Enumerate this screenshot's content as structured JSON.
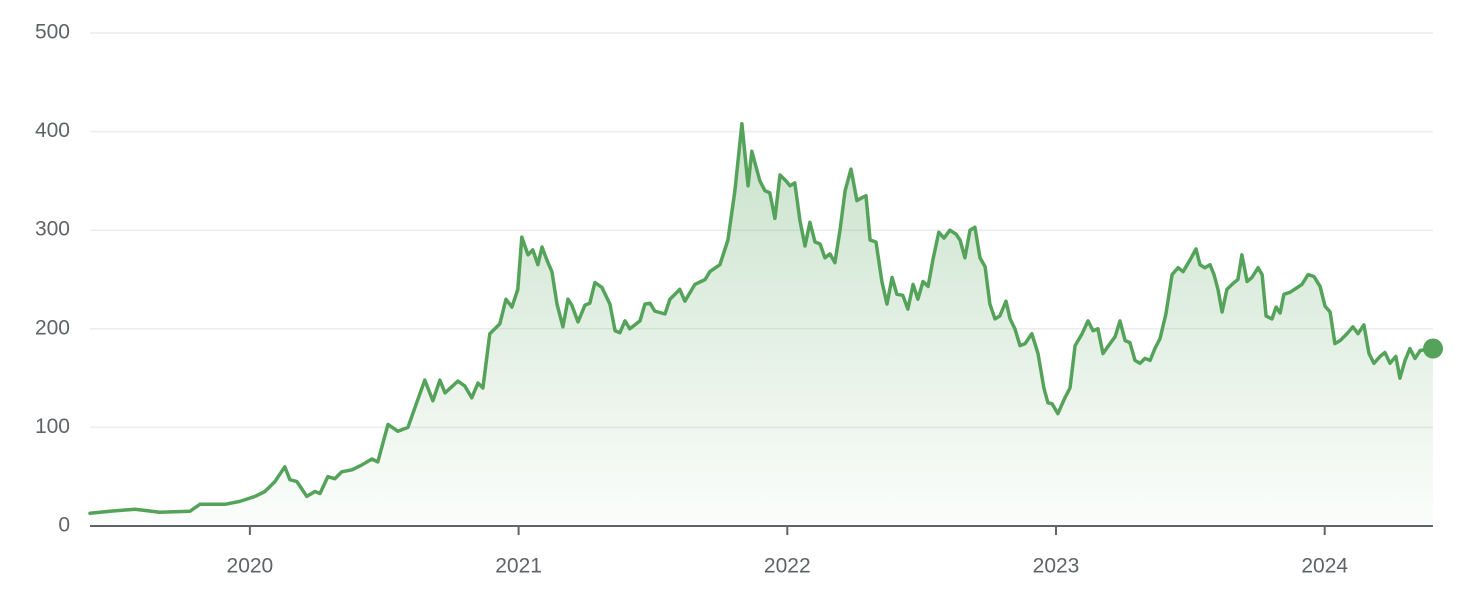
{
  "chart_data": {
    "type": "line",
    "color": "#55a35a",
    "grid": true,
    "end_marker": true,
    "xlim": [
      2019.405,
      2024.403
    ],
    "xticks": [
      2020,
      2021,
      2022,
      2023,
      2024
    ],
    "ylim": [
      0,
      500
    ],
    "yticks": [
      0,
      100,
      200,
      300,
      400,
      500
    ],
    "x": [
      2019.405,
      2019.479,
      2019.572,
      2019.665,
      2019.777,
      2019.814,
      2019.907,
      2019.963,
      2020.019,
      2020.056,
      2020.093,
      2020.13,
      2020.149,
      2020.175,
      2020.212,
      2020.242,
      2020.261,
      2020.29,
      2020.316,
      2020.342,
      2020.38,
      2020.417,
      2020.454,
      2020.476,
      2020.514,
      2020.551,
      2020.588,
      2020.614,
      2020.651,
      2020.681,
      2020.707,
      2020.726,
      2020.774,
      2020.8,
      2020.826,
      2020.849,
      2020.867,
      2020.893,
      2020.93,
      2020.953,
      2020.975,
      2020.997,
      2021.012,
      2021.035,
      2021.053,
      2021.072,
      2021.087,
      2021.105,
      2021.124,
      2021.143,
      2021.165,
      2021.184,
      2021.198,
      2021.221,
      2021.247,
      2021.265,
      2021.284,
      2021.31,
      2021.34,
      2021.359,
      2021.377,
      2021.396,
      2021.414,
      2021.452,
      2021.47,
      2021.489,
      2021.507,
      2021.545,
      2021.563,
      2021.6,
      2021.619,
      2021.656,
      2021.694,
      2021.712,
      2021.749,
      2021.779,
      2021.805,
      2021.831,
      2021.854,
      2021.868,
      2021.898,
      2021.917,
      2021.935,
      2021.954,
      2021.973,
      2021.995,
      2022.01,
      2022.028,
      2022.047,
      2022.066,
      2022.084,
      2022.103,
      2022.122,
      2022.14,
      2022.159,
      2022.177,
      2022.196,
      2022.215,
      2022.237,
      2022.259,
      2022.278,
      2022.293,
      2022.308,
      2022.33,
      2022.352,
      2022.371,
      2022.39,
      2022.408,
      2022.43,
      2022.449,
      2022.468,
      2022.486,
      2022.505,
      2022.524,
      2022.542,
      2022.564,
      2022.583,
      2022.605,
      2022.628,
      2022.643,
      2022.661,
      2022.68,
      2022.698,
      2022.717,
      2022.736,
      2022.754,
      2022.773,
      2022.791,
      2022.814,
      2022.829,
      2022.847,
      2022.866,
      2022.885,
      2022.91,
      2022.933,
      2022.955,
      2022.97,
      2022.985,
      2023.007,
      2023.033,
      2023.052,
      2023.071,
      2023.097,
      2023.119,
      2023.138,
      2023.156,
      2023.175,
      2023.201,
      2023.22,
      2023.238,
      2023.257,
      2023.275,
      2023.294,
      2023.313,
      2023.331,
      2023.35,
      2023.368,
      2023.387,
      2023.409,
      2023.432,
      2023.454,
      2023.473,
      2023.499,
      2023.521,
      2023.536,
      2023.554,
      2023.573,
      2023.588,
      2023.603,
      2023.618,
      2023.636,
      2023.659,
      2023.677,
      2023.692,
      2023.711,
      2023.729,
      2023.752,
      2023.767,
      2023.782,
      2023.804,
      2023.819,
      2023.834,
      2023.848,
      2023.871,
      2023.893,
      2023.915,
      2023.938,
      2023.96,
      2023.983,
      2024.001,
      2024.02,
      2024.038,
      2024.057,
      2024.083,
      2024.105,
      2024.124,
      2024.146,
      2024.165,
      2024.183,
      2024.206,
      2024.224,
      2024.243,
      2024.265,
      2024.28,
      2024.299,
      2024.317,
      2024.336,
      2024.355,
      2024.403
    ],
    "values": [
      13,
      15,
      17,
      14,
      15,
      22,
      22,
      25,
      30,
      35,
      45,
      60,
      47,
      45,
      30,
      35,
      33,
      50,
      48,
      55,
      57,
      62,
      68,
      65,
      103,
      96,
      100,
      120,
      148,
      127,
      148,
      135,
      147,
      142,
      130,
      145,
      140,
      195,
      205,
      230,
      222,
      240,
      293,
      275,
      280,
      265,
      283,
      270,
      258,
      225,
      202,
      230,
      224,
      207,
      224,
      226,
      247,
      242,
      225,
      198,
      196,
      208,
      200,
      208,
      225,
      226,
      218,
      215,
      230,
      240,
      228,
      245,
      250,
      258,
      265,
      290,
      340,
      408,
      345,
      380,
      350,
      340,
      338,
      312,
      356,
      350,
      345,
      348,
      310,
      284,
      308,
      288,
      286,
      272,
      276,
      267,
      300,
      340,
      362,
      330,
      333,
      335,
      290,
      288,
      248,
      225,
      252,
      235,
      234,
      220,
      245,
      230,
      248,
      243,
      270,
      298,
      292,
      300,
      296,
      290,
      272,
      300,
      303,
      272,
      263,
      225,
      210,
      213,
      228,
      210,
      200,
      183,
      185,
      195,
      175,
      140,
      125,
      124,
      114,
      130,
      140,
      183,
      195,
      208,
      198,
      200,
      175,
      185,
      192,
      208,
      188,
      186,
      168,
      165,
      170,
      168,
      180,
      190,
      215,
      255,
      262,
      258,
      270,
      281,
      265,
      262,
      265,
      255,
      240,
      217,
      240,
      246,
      250,
      275,
      248,
      252,
      262,
      255,
      213,
      210,
      222,
      216,
      235,
      237,
      241,
      245,
      255,
      253,
      243,
      223,
      217,
      185,
      188,
      195,
      202,
      195,
      204,
      175,
      165,
      172,
      176,
      165,
      172,
      150,
      168,
      180,
      170,
      178,
      180
    ]
  }
}
